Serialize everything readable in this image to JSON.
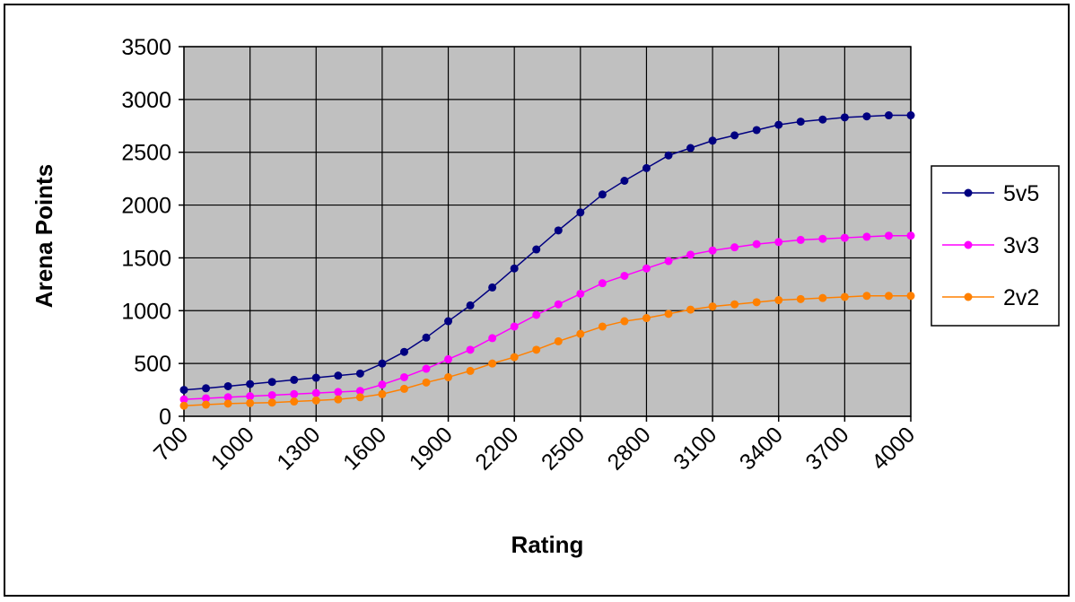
{
  "chart_data": {
    "type": "line",
    "title": "",
    "xlabel": "Rating",
    "ylabel": "Arena Points",
    "xlim": [
      700,
      4000
    ],
    "ylim": [
      0,
      3500
    ],
    "x_ticks": [
      "700",
      "1000",
      "1300",
      "1600",
      "1900",
      "2200",
      "2500",
      "2800",
      "3100",
      "3400",
      "3700",
      "4000"
    ],
    "y_ticks": [
      "0",
      "500",
      "1000",
      "1500",
      "2000",
      "2500",
      "3000",
      "3500"
    ],
    "grid": true,
    "legend_position": "right",
    "x": [
      700,
      800,
      900,
      1000,
      1100,
      1200,
      1300,
      1400,
      1500,
      1600,
      1700,
      1800,
      1900,
      2000,
      2100,
      2200,
      2300,
      2400,
      2500,
      2600,
      2700,
      2800,
      2900,
      3000,
      3100,
      3200,
      3300,
      3400,
      3500,
      3600,
      3700,
      3800,
      3900,
      4000
    ],
    "series": [
      {
        "name": "5v5",
        "color": "#000080",
        "values": [
          250,
          265,
          285,
          305,
          325,
          345,
          365,
          385,
          405,
          500,
          610,
          745,
          900,
          1050,
          1220,
          1400,
          1580,
          1760,
          1930,
          2100,
          2230,
          2350,
          2470,
          2540,
          2610,
          2660,
          2710,
          2760,
          2790,
          2810,
          2830,
          2840,
          2850,
          2850
        ]
      },
      {
        "name": "3v3",
        "color": "#ff00ff",
        "values": [
          160,
          170,
          180,
          190,
          200,
          210,
          220,
          230,
          240,
          300,
          370,
          450,
          540,
          630,
          740,
          850,
          960,
          1060,
          1160,
          1260,
          1330,
          1400,
          1470,
          1530,
          1570,
          1600,
          1630,
          1650,
          1670,
          1680,
          1690,
          1700,
          1710,
          1710
        ]
      },
      {
        "name": "2v2",
        "color": "#ff8000",
        "values": [
          100,
          110,
          120,
          125,
          130,
          140,
          150,
          160,
          180,
          210,
          260,
          320,
          370,
          430,
          500,
          560,
          630,
          710,
          780,
          850,
          900,
          930,
          970,
          1010,
          1040,
          1060,
          1080,
          1100,
          1110,
          1120,
          1130,
          1140,
          1140,
          1140
        ]
      }
    ]
  },
  "colors": {
    "plot_background": "#c0c0c0",
    "gridline": "#000000"
  }
}
